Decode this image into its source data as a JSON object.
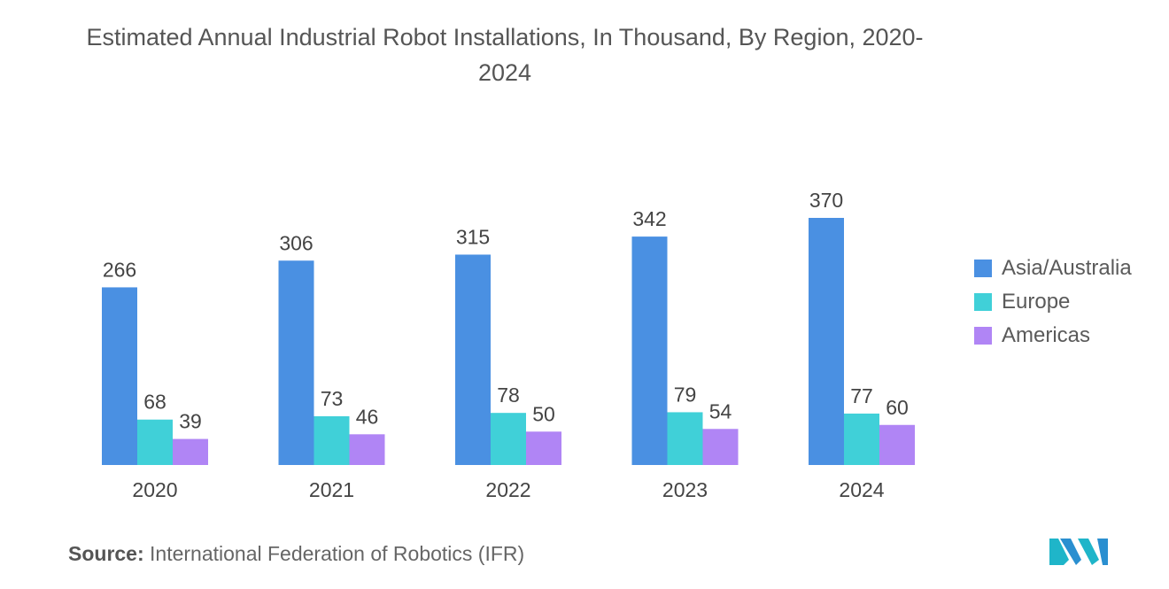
{
  "chart_data": {
    "type": "bar",
    "title": "Estimated Annual Industrial Robot Installations, In Thousand, By Region, 2020-2024",
    "categories": [
      "2020",
      "2021",
      "2022",
      "2023",
      "2024"
    ],
    "series": [
      {
        "name": "Asia/Australia",
        "color": "#4a90e2",
        "values": [
          266,
          306,
          315,
          342,
          370
        ]
      },
      {
        "name": "Europe",
        "color": "#40d0d8",
        "values": [
          68,
          73,
          78,
          79,
          77
        ]
      },
      {
        "name": "Americas",
        "color": "#b085f5",
        "values": [
          39,
          46,
          50,
          54,
          60
        ]
      }
    ],
    "xlabel": "",
    "ylabel": "",
    "ylim": [
      0,
      370
    ],
    "grid": false,
    "legend_position": "right"
  },
  "source": {
    "label": "Source:",
    "text": "International Federation of Robotics (IFR)"
  },
  "logo": {
    "icon": "mordor-intelligence-logo-icon"
  }
}
